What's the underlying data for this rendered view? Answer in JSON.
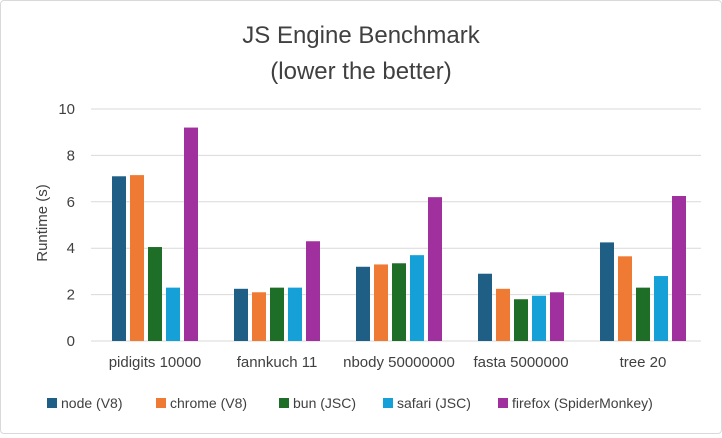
{
  "chart_data": {
    "type": "bar",
    "title": "JS Engine Benchmark",
    "subtitle": "(lower the better)",
    "xlabel": "",
    "ylabel": "Runtime (s)",
    "ylim": [
      0,
      10
    ],
    "yticks": [
      0,
      2,
      4,
      6,
      8,
      10
    ],
    "grid": true,
    "legend_position": "bottom",
    "categories": [
      "pidigits 10000",
      "fannkuch 11",
      "nbody 50000000",
      "fasta 5000000",
      "tree 20"
    ],
    "series": [
      {
        "name": "node (V8)",
        "color": "#1f5f86",
        "values": [
          7.1,
          2.25,
          3.2,
          2.9,
          4.25
        ]
      },
      {
        "name": "chrome (V8)",
        "color": "#ee7a34",
        "values": [
          7.15,
          2.1,
          3.3,
          2.25,
          3.65
        ]
      },
      {
        "name": "bun (JSC)",
        "color": "#1e6e28",
        "values": [
          4.05,
          2.3,
          3.35,
          1.8,
          2.3
        ]
      },
      {
        "name": "safari (JSC)",
        "color": "#16a0d8",
        "values": [
          2.3,
          2.3,
          3.7,
          1.95,
          2.8
        ]
      },
      {
        "name": "firefox (SpiderMonkey)",
        "color": "#a0309e",
        "values": [
          9.2,
          4.3,
          6.2,
          2.1,
          6.25
        ]
      }
    ]
  }
}
